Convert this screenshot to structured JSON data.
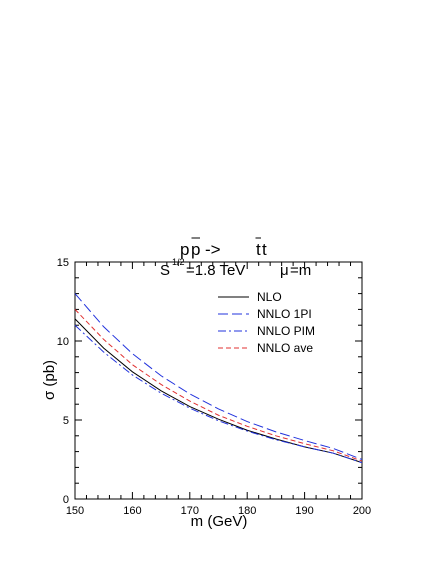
{
  "chart_data": {
    "type": "line",
    "title_process": {
      "p": "p",
      "pbar": "p",
      "arrow": "->",
      "tbar": "t",
      "t": "t"
    },
    "subtitle": {
      "s": "S",
      "s_exp": "1/2",
      "energy": "=1.8 TeV",
      "mu": "μ",
      "mu_rest": "=m"
    },
    "xlabel": "m (GeV)",
    "ylabel": "σ (pb)",
    "xlim": [
      150,
      200
    ],
    "ylim": [
      0,
      15
    ],
    "xticks": [
      "150",
      "160",
      "170",
      "180",
      "190",
      "200"
    ],
    "yticks": [
      "0",
      "5",
      "10",
      "15"
    ],
    "x": [
      150,
      155,
      160,
      165,
      170,
      175,
      180,
      185,
      190,
      195,
      200
    ],
    "series": [
      {
        "name": "NLO",
        "color": "#000000",
        "dash": "solid",
        "values": [
          11.4,
          9.55,
          8.05,
          6.85,
          5.85,
          5.05,
          4.35,
          3.8,
          3.3,
          2.9,
          2.3
        ]
      },
      {
        "name": "NNLO 1PI",
        "color": "#2233dd",
        "dash": "long-dash",
        "values": [
          13.0,
          10.9,
          9.2,
          7.8,
          6.65,
          5.7,
          4.9,
          4.25,
          3.7,
          3.2,
          2.5
        ]
      },
      {
        "name": "NNLO PIM",
        "color": "#2233dd",
        "dash": "dash-dot",
        "values": [
          11.0,
          9.3,
          7.85,
          6.7,
          5.75,
          4.95,
          4.3,
          3.75,
          3.3,
          2.9,
          2.3
        ]
      },
      {
        "name": "NNLO ave",
        "color": "#e03030",
        "dash": "short-dash",
        "values": [
          12.0,
          10.1,
          8.5,
          7.25,
          6.2,
          5.3,
          4.6,
          4.0,
          3.5,
          3.05,
          2.4
        ]
      }
    ],
    "legend_position": "top-right",
    "grid": false
  }
}
